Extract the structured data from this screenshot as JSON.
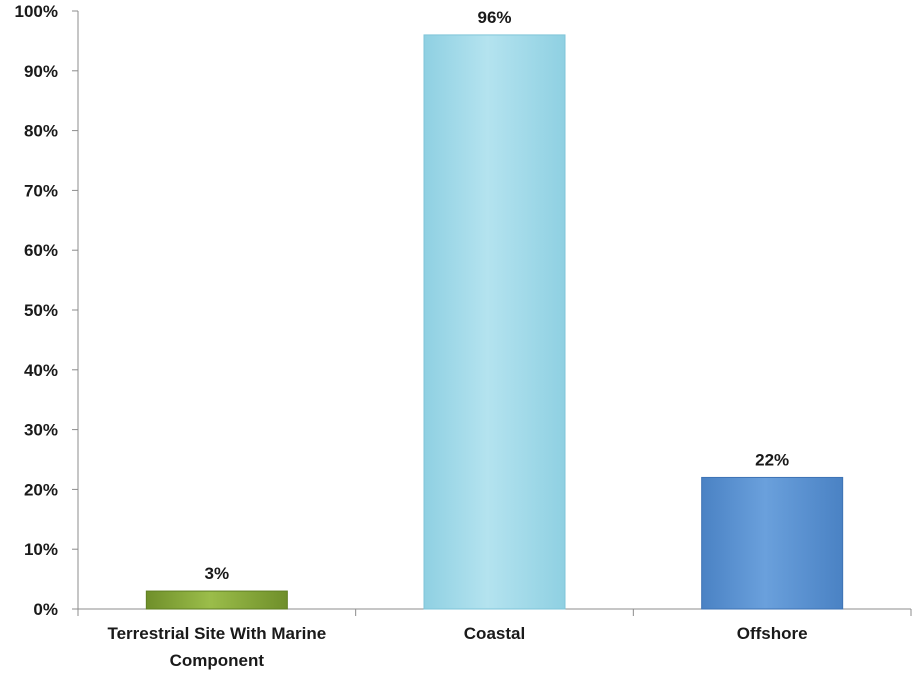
{
  "chart_data": {
    "type": "bar",
    "title": "",
    "xlabel": "",
    "ylabel": "",
    "categories": [
      [
        "Terrestrial Site With Marine",
        "Component"
      ],
      [
        "Coastal"
      ],
      [
        "Offshore"
      ]
    ],
    "values": [
      3,
      96,
      22
    ],
    "data_labels": [
      "3%",
      "96%",
      "22%"
    ],
    "ylim": [
      0,
      100
    ],
    "yticks": [
      0,
      10,
      20,
      30,
      40,
      50,
      60,
      70,
      80,
      90,
      100
    ],
    "ytick_labels": [
      "0%",
      "10%",
      "20%",
      "30%",
      "40%",
      "50%",
      "60%",
      "70%",
      "80%",
      "90%",
      "100%"
    ],
    "grid": false,
    "legend": "none",
    "bar_colors": [
      "#8aaa3c",
      "#a6dcea",
      "#5b93d2"
    ],
    "bar_edge_colors": [
      "#5f7f22",
      "#7fc4d8",
      "#3e73b5"
    ]
  }
}
